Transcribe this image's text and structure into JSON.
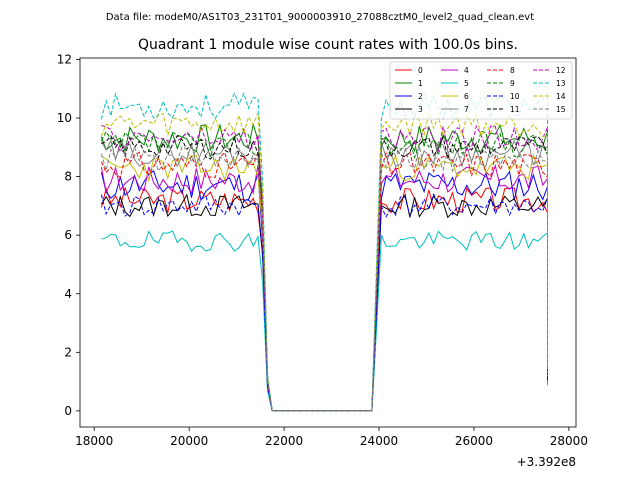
{
  "header": {
    "data_file": "Data file: modeM0/AS1T03_231T01_9000003910_27088cztM0_level2_quad_clean.evt"
  },
  "chart_data": {
    "type": "line",
    "title": "Quadrant 1 module wise count rates with 100.0s bins.",
    "xlabel": "",
    "ylabel": "",
    "x_offset_label": "+3.392e8",
    "xlim": [
      17700,
      28150
    ],
    "ylim": [
      -0.55,
      12.05
    ],
    "xticks": [
      18000,
      20000,
      22000,
      24000,
      26000,
      28000
    ],
    "yticks": [
      0,
      2,
      4,
      6,
      8,
      10,
      12
    ],
    "grid": false,
    "legend_position": "top-right",
    "x_range_data": {
      "start": 18150,
      "step": 100,
      "count": 95,
      "gap_start": 21550,
      "gap_end": 23900
    },
    "series": [
      {
        "name": "0",
        "color": "#ff0000",
        "dash": "solid",
        "level": 7.2,
        "amp": 0.45,
        "seed": 3
      },
      {
        "name": "1",
        "color": "#008000",
        "dash": "solid",
        "level": 9.3,
        "amp": 0.5,
        "seed": 7
      },
      {
        "name": "2",
        "color": "#0000ff",
        "dash": "solid",
        "level": 7.7,
        "amp": 0.55,
        "seed": 11
      },
      {
        "name": "3",
        "color": "#000000",
        "dash": "solid",
        "level": 7.0,
        "amp": 0.4,
        "seed": 13
      },
      {
        "name": "4",
        "color": "#c000c0",
        "dash": "solid",
        "level": 7.9,
        "amp": 0.5,
        "seed": 17
      },
      {
        "name": "5",
        "color": "#00bfbf",
        "dash": "solid",
        "level": 5.8,
        "amp": 0.35,
        "seed": 19
      },
      {
        "name": "6",
        "color": "#bfbf00",
        "dash": "solid",
        "level": 8.3,
        "amp": 0.45,
        "seed": 23
      },
      {
        "name": "7",
        "color": "#808080",
        "dash": "solid",
        "level": 8.8,
        "amp": 0.45,
        "seed": 29
      },
      {
        "name": "8",
        "color": "#ff0000",
        "dash": "dashed",
        "level": 8.4,
        "amp": 0.45,
        "seed": 31
      },
      {
        "name": "9",
        "color": "#008000",
        "dash": "dashed",
        "level": 9.1,
        "amp": 0.45,
        "seed": 37
      },
      {
        "name": "10",
        "color": "#0000ff",
        "dash": "dashed",
        "level": 7.0,
        "amp": 0.4,
        "seed": 41
      },
      {
        "name": "11",
        "color": "#000000",
        "dash": "dashed",
        "level": 9.0,
        "amp": 0.4,
        "seed": 43
      },
      {
        "name": "12",
        "color": "#c000c0",
        "dash": "dashed",
        "level": 9.3,
        "amp": 0.45,
        "seed": 47
      },
      {
        "name": "13",
        "color": "#00bfbf",
        "dash": "dashed",
        "level": 10.4,
        "amp": 0.45,
        "seed": 53
      },
      {
        "name": "14",
        "color": "#bfbf00",
        "dash": "dashed",
        "level": 9.8,
        "amp": 0.45,
        "seed": 59
      },
      {
        "name": "15",
        "color": "#808080",
        "dash": "dashed",
        "level": 8.6,
        "amp": 0.45,
        "seed": 61
      }
    ]
  }
}
